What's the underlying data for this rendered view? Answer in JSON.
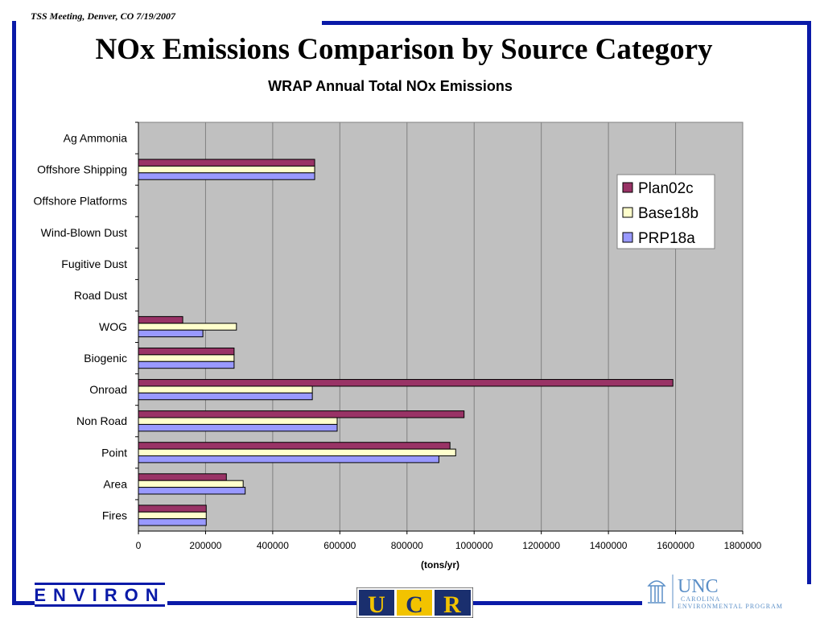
{
  "header": {
    "meeting": "TSS Meeting, Denver, CO  7/19/2007",
    "title": "NOx Emissions Comparison by Source Category"
  },
  "chart_data": {
    "type": "bar",
    "orientation": "horizontal",
    "title": "WRAP Annual Total NOx Emissions",
    "xlabel": "(tons/yr)",
    "ylabel": "",
    "xlim": [
      0,
      1800000
    ],
    "xticks": [
      0,
      200000,
      400000,
      600000,
      800000,
      1000000,
      1200000,
      1400000,
      1600000,
      1800000
    ],
    "grid": true,
    "legend_position": "right",
    "categories": [
      "Ag Ammonia",
      "Offshore Shipping",
      "Offshore Platforms",
      "Wind-Blown Dust",
      "Fugitive Dust",
      "Road Dust",
      "WOG",
      "Biogenic",
      "Onroad",
      "Non Road",
      "Point",
      "Area",
      "Fires"
    ],
    "series": [
      {
        "name": "Plan02c",
        "color": "#993366",
        "values": [
          0,
          525000,
          0,
          0,
          0,
          0,
          132000,
          285000,
          1592000,
          970000,
          928000,
          262000,
          202000
        ]
      },
      {
        "name": "Base18b",
        "color": "#ffffcc",
        "values": [
          0,
          525000,
          0,
          0,
          0,
          0,
          292000,
          285000,
          518000,
          592000,
          945000,
          312000,
          202000
        ]
      },
      {
        "name": "PRP18a",
        "color": "#9999ff",
        "values": [
          0,
          525000,
          0,
          0,
          0,
          0,
          192000,
          285000,
          518000,
          592000,
          895000,
          318000,
          202000
        ]
      }
    ]
  },
  "logos": {
    "environ": "ENVIRON",
    "ucr": "UCR",
    "unc": "UNC",
    "unc_sub1": "CAROLINA",
    "unc_sub2": "ENVIRONMENTAL PROGRAM"
  }
}
